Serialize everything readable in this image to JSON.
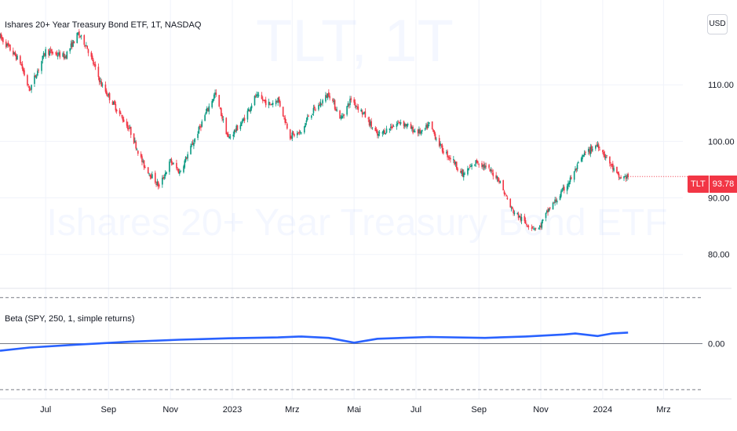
{
  "header": {
    "title": "Ishares 20+ Year Treasury Bond ETF, 1T, NASDAQ",
    "currency": "USD"
  },
  "watermark": {
    "symbol": "TLT, 1T",
    "name": "Ishares 20+ Year Treasury Bond ETF"
  },
  "price_tag": {
    "symbol": "TLT",
    "value": "93.78"
  },
  "indicator": {
    "label": "Beta (SPY, 250, 1, simple returns)",
    "zero_label": "0.00"
  },
  "colors": {
    "up": "#089981",
    "down": "#f23645",
    "beta_line": "#2962ff",
    "grid": "#f0f3fa"
  },
  "chart_data": [
    {
      "type": "candlestick",
      "title": "Ishares 20+ Year Treasury Bond ETF, 1T, NASDAQ",
      "y_ticks": [
        80,
        90,
        100,
        110
      ],
      "y_tick_labels": [
        "80.00",
        "90.00",
        "100.00",
        "110.00"
      ],
      "ylim": [
        74,
        125
      ],
      "x_range": [
        "2022-05-17",
        "2024-03-20"
      ],
      "x_ticks": [
        "2022-07-01",
        "2022-09-01",
        "2022-11-01",
        "2023-01-01",
        "2023-03-01",
        "2023-05-01",
        "2023-07-01",
        "2023-09-01",
        "2023-11-01",
        "2024-01-01",
        "2024-03-01"
      ],
      "x_tick_labels": [
        "Jul",
        "Sep",
        "Nov",
        "2023",
        "Mrz",
        "Mai",
        "Jul",
        "Sep",
        "Nov",
        "2024",
        "Mrz"
      ],
      "last_value": 93.78,
      "close_path": [
        [
          "2022-05-17",
          118.5
        ],
        [
          "2022-06-06",
          114.0
        ],
        [
          "2022-06-15",
          109.0
        ],
        [
          "2022-07-01",
          116.0
        ],
        [
          "2022-07-20",
          115.0
        ],
        [
          "2022-08-02",
          119.0
        ],
        [
          "2022-08-10",
          117.0
        ],
        [
          "2022-08-25",
          110.0
        ],
        [
          "2022-09-08",
          106.0
        ],
        [
          "2022-09-22",
          102.0
        ],
        [
          "2022-10-05",
          96.0
        ],
        [
          "2022-10-21",
          92.0
        ],
        [
          "2022-11-01",
          96.5
        ],
        [
          "2022-11-10",
          94.5
        ],
        [
          "2022-11-24",
          100.0
        ],
        [
          "2022-12-06",
          105.0
        ],
        [
          "2022-12-15",
          108.5
        ],
        [
          "2022-12-28",
          100.5
        ],
        [
          "2023-01-11",
          103.5
        ],
        [
          "2023-01-24",
          108.0
        ],
        [
          "2023-02-07",
          106.5
        ],
        [
          "2023-02-15",
          107.5
        ],
        [
          "2023-02-27",
          101.0
        ],
        [
          "2023-03-10",
          101.5
        ],
        [
          "2023-03-17",
          104.5
        ],
        [
          "2023-03-28",
          106.5
        ],
        [
          "2023-04-06",
          108.5
        ],
        [
          "2023-04-18",
          104.0
        ],
        [
          "2023-04-28",
          107.5
        ],
        [
          "2023-05-12",
          104.5
        ],
        [
          "2023-05-24",
          101.0
        ],
        [
          "2023-06-06",
          102.5
        ],
        [
          "2023-06-16",
          103.5
        ],
        [
          "2023-06-28",
          102.0
        ],
        [
          "2023-07-07",
          101.5
        ],
        [
          "2023-07-14",
          103.0
        ],
        [
          "2023-07-27",
          98.5
        ],
        [
          "2023-08-07",
          96.5
        ],
        [
          "2023-08-16",
          94.0
        ],
        [
          "2023-08-30",
          96.5
        ],
        [
          "2023-09-07",
          95.5
        ],
        [
          "2023-09-20",
          93.5
        ],
        [
          "2023-10-03",
          88.0
        ],
        [
          "2023-10-17",
          85.5
        ],
        [
          "2023-10-30",
          84.5
        ],
        [
          "2023-11-09",
          88.0
        ],
        [
          "2023-11-20",
          90.5
        ],
        [
          "2023-12-01",
          93.5
        ],
        [
          "2023-12-13",
          97.5
        ],
        [
          "2023-12-27",
          99.5
        ],
        [
          "2024-01-05",
          97.0
        ],
        [
          "2024-01-17",
          93.5
        ],
        [
          "2024-01-26",
          93.8
        ]
      ]
    },
    {
      "type": "line",
      "title": "Beta (SPY, 250, 1, simple returns)",
      "y_ticks": [
        0
      ],
      "y_tick_labels": [
        "0.00"
      ],
      "ylim": [
        -0.24,
        0.24
      ],
      "reference_lines": [
        -0.2,
        0,
        0.2
      ],
      "series": [
        {
          "values": [
            [
              "2022-05-17",
              -0.031
            ],
            [
              "2022-06-15",
              -0.017
            ],
            [
              "2022-08-02",
              -0.004
            ],
            [
              "2022-09-22",
              0.008
            ],
            [
              "2022-11-10",
              0.017
            ],
            [
              "2022-12-28",
              0.023
            ],
            [
              "2023-02-15",
              0.027
            ],
            [
              "2023-03-10",
              0.031
            ],
            [
              "2023-04-06",
              0.025
            ],
            [
              "2023-05-01",
              0.004
            ],
            [
              "2023-05-24",
              0.021
            ],
            [
              "2023-07-14",
              0.029
            ],
            [
              "2023-09-07",
              0.025
            ],
            [
              "2023-10-17",
              0.031
            ],
            [
              "2023-11-24",
              0.04
            ],
            [
              "2023-12-05",
              0.044
            ],
            [
              "2023-12-27",
              0.033
            ],
            [
              "2024-01-10",
              0.044
            ],
            [
              "2024-01-26",
              0.048
            ]
          ]
        }
      ]
    }
  ]
}
